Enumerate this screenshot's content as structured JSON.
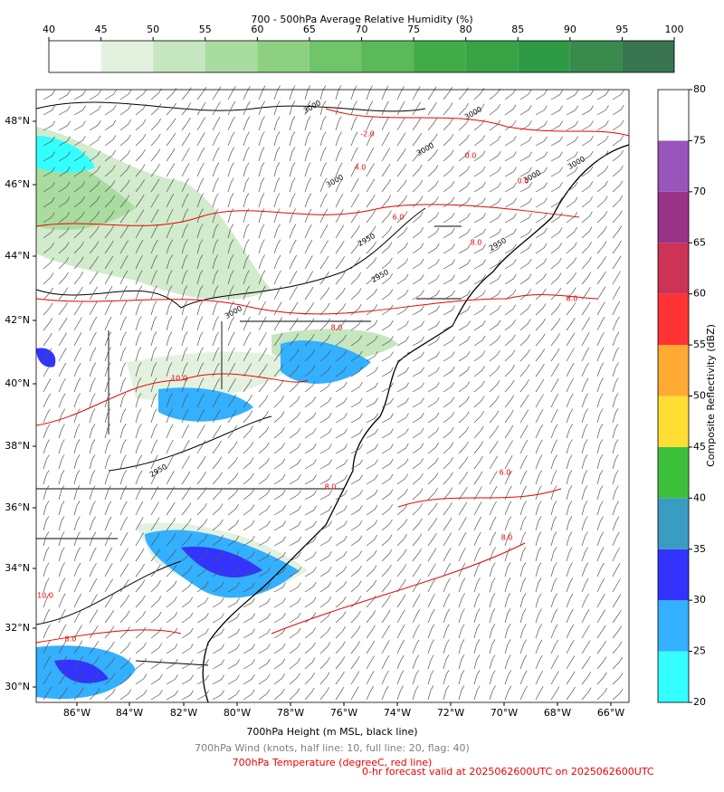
{
  "rh_colorbar": {
    "title": "700 - 500hPa Average Relative Humidity (%)",
    "ticks": [
      40,
      45,
      50,
      55,
      60,
      65,
      70,
      75,
      80,
      85,
      90,
      95,
      100
    ],
    "colors": [
      "#ffffff",
      "#e3f2df",
      "#c6e6bf",
      "#a9dc9f",
      "#8dd082",
      "#70c46a",
      "#5bb95a",
      "#41ab48",
      "#37a345",
      "#2f9a46",
      "#3a8a4d",
      "#3a7551"
    ]
  },
  "reflectivity_colorbar": {
    "label": "Composite Reflectivity (dBZ)",
    "ticks": [
      20,
      25,
      30,
      35,
      40,
      45,
      50,
      55,
      60,
      65,
      70,
      75,
      80
    ],
    "colors": [
      "#33ffff",
      "#33b0ff",
      "#3333ff",
      "#3a9cc2",
      "#3cc03c",
      "#ffdd33",
      "#ffaa33",
      "#ff3333",
      "#cc3355",
      "#993388",
      "#9955bb",
      "#ffffff"
    ]
  },
  "map": {
    "longitude_labels": [
      "86°W",
      "84°W",
      "82°W",
      "80°W",
      "78°W",
      "76°W",
      "74°W",
      "72°W",
      "70°W",
      "68°W",
      "66°W"
    ],
    "latitude_labels": [
      "48°N",
      "46°N",
      "44°N",
      "42°N",
      "40°N",
      "38°N",
      "36°N",
      "34°N",
      "32°N",
      "30°N"
    ],
    "height_contour_labels": [
      "3000",
      "3000",
      "3000",
      "3000",
      "3000",
      "3000",
      "3000",
      "2950",
      "2950",
      "2950",
      "2950"
    ],
    "temperature_contour_labels": [
      "-2.0",
      "0.0",
      "0.0",
      "4.0",
      "6.0",
      "8.0",
      "8.0",
      "10.0",
      "8.0",
      "6.0",
      "8.0",
      "8.0",
      "10.0",
      "8.0"
    ]
  },
  "footer": {
    "height_note": "700hPa Height (m MSL, black line)",
    "wind_note": "700hPa Wind (knots, half line: 10, full line: 20, flag: 40)",
    "temperature_note": "700hPa Temperature (degreeC, red line)",
    "valid_note": "0-hr forecast valid at 2025062600UTC on 2025062600UTC"
  }
}
